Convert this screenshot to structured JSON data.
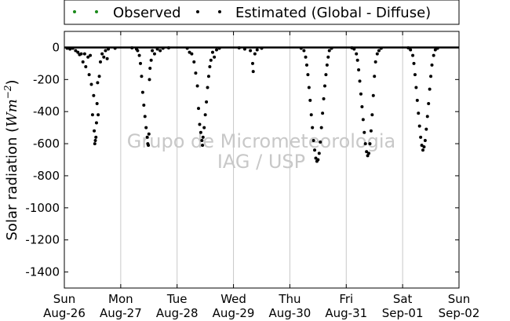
{
  "chart_data": {
    "type": "scatter",
    "title": "",
    "ylabel": "Solar radiation (Wm⁻²)",
    "ylabel_parts": {
      "main": "Solar radiation (",
      "unit": "Wm",
      "exp": "−2",
      "close": ")"
    },
    "xlabel": "",
    "ylim": [
      -1500,
      100
    ],
    "y_ticks": [
      0,
      -200,
      -400,
      -600,
      -800,
      -1000,
      -1200,
      -1400
    ],
    "xlim": [
      0,
      7
    ],
    "x_ticks": [
      {
        "day": 0,
        "weekday": "Sun",
        "date": "Aug-26"
      },
      {
        "day": 1,
        "weekday": "Mon",
        "date": "Aug-27"
      },
      {
        "day": 2,
        "weekday": "Tue",
        "date": "Aug-28"
      },
      {
        "day": 3,
        "weekday": "Wed",
        "date": "Aug-29"
      },
      {
        "day": 4,
        "weekday": "Thu",
        "date": "Aug-30"
      },
      {
        "day": 5,
        "weekday": "Fri",
        "date": "Aug-31"
      },
      {
        "day": 6,
        "weekday": "Sat",
        "date": "Sep-01"
      },
      {
        "day": 7,
        "weekday": "Sun",
        "date": "Sep-02"
      }
    ],
    "grid": "vertical",
    "legend_placement": "top-center",
    "series": [
      {
        "name": "Observed",
        "color": "#1a8a1a",
        "marker": "dot",
        "points": []
      },
      {
        "name": "Estimated (Global - Diffuse)",
        "color": "#000000",
        "marker": "dot",
        "points": [
          {
            "x": 0.05,
            "y": -5
          },
          {
            "x": 0.1,
            "y": -10
          },
          {
            "x": 0.15,
            "y": -5
          },
          {
            "x": 0.2,
            "y": -20
          },
          {
            "x": 0.24,
            "y": -30
          },
          {
            "x": 0.27,
            "y": -45
          },
          {
            "x": 0.3,
            "y": -40
          },
          {
            "x": 0.33,
            "y": -90
          },
          {
            "x": 0.36,
            "y": -40
          },
          {
            "x": 0.38,
            "y": -120
          },
          {
            "x": 0.42,
            "y": -60
          },
          {
            "x": 0.44,
            "y": -170
          },
          {
            "x": 0.46,
            "y": -50
          },
          {
            "x": 0.48,
            "y": -230
          },
          {
            "x": 0.5,
            "y": -420
          },
          {
            "x": 0.52,
            "y": -300
          },
          {
            "x": 0.53,
            "y": -520
          },
          {
            "x": 0.54,
            "y": -600
          },
          {
            "x": 0.55,
            "y": -580
          },
          {
            "x": 0.56,
            "y": -560
          },
          {
            "x": 0.57,
            "y": -470
          },
          {
            "x": 0.58,
            "y": -350
          },
          {
            "x": 0.59,
            "y": -220
          },
          {
            "x": 0.6,
            "y": -420
          },
          {
            "x": 0.62,
            "y": -180
          },
          {
            "x": 0.64,
            "y": -90
          },
          {
            "x": 0.67,
            "y": -40
          },
          {
            "x": 0.7,
            "y": -60
          },
          {
            "x": 0.73,
            "y": -20
          },
          {
            "x": 0.76,
            "y": -70
          },
          {
            "x": 0.78,
            "y": -10
          },
          {
            "x": 0.9,
            "y": -5
          },
          {
            "x": 1.2,
            "y": -3
          },
          {
            "x": 1.28,
            "y": -10
          },
          {
            "x": 1.3,
            "y": -20
          },
          {
            "x": 1.33,
            "y": -50
          },
          {
            "x": 1.35,
            "y": -100
          },
          {
            "x": 1.37,
            "y": -180
          },
          {
            "x": 1.39,
            "y": -280
          },
          {
            "x": 1.41,
            "y": -360
          },
          {
            "x": 1.43,
            "y": -430
          },
          {
            "x": 1.45,
            "y": -500
          },
          {
            "x": 1.47,
            "y": -560
          },
          {
            "x": 1.48,
            "y": -600
          },
          {
            "x": 1.49,
            "y": -610
          },
          {
            "x": 1.5,
            "y": -540
          },
          {
            "x": 1.51,
            "y": -200
          },
          {
            "x": 1.52,
            "y": -130
          },
          {
            "x": 1.54,
            "y": -80
          },
          {
            "x": 1.56,
            "y": -20
          },
          {
            "x": 1.6,
            "y": -40
          },
          {
            "x": 1.65,
            "y": -10
          },
          {
            "x": 1.7,
            "y": -20
          },
          {
            "x": 1.75,
            "y": -5
          },
          {
            "x": 1.85,
            "y": -3
          },
          {
            "x": 2.18,
            "y": -5
          },
          {
            "x": 2.22,
            "y": -30
          },
          {
            "x": 2.26,
            "y": -40
          },
          {
            "x": 2.3,
            "y": -90
          },
          {
            "x": 2.33,
            "y": -160
          },
          {
            "x": 2.36,
            "y": -240
          },
          {
            "x": 2.38,
            "y": -380
          },
          {
            "x": 2.4,
            "y": -480
          },
          {
            "x": 2.42,
            "y": -530
          },
          {
            "x": 2.44,
            "y": -580
          },
          {
            "x": 2.45,
            "y": -610
          },
          {
            "x": 2.46,
            "y": -560
          },
          {
            "x": 2.48,
            "y": -500
          },
          {
            "x": 2.5,
            "y": -420
          },
          {
            "x": 2.52,
            "y": -340
          },
          {
            "x": 2.54,
            "y": -250
          },
          {
            "x": 2.56,
            "y": -180
          },
          {
            "x": 2.58,
            "y": -120
          },
          {
            "x": 2.6,
            "y": -80
          },
          {
            "x": 2.63,
            "y": -30
          },
          {
            "x": 2.66,
            "y": -60
          },
          {
            "x": 2.7,
            "y": -15
          },
          {
            "x": 2.75,
            "y": -5
          },
          {
            "x": 3.1,
            "y": -3
          },
          {
            "x": 3.2,
            "y": -10
          },
          {
            "x": 3.3,
            "y": -20
          },
          {
            "x": 3.34,
            "y": -100
          },
          {
            "x": 3.35,
            "y": -150
          },
          {
            "x": 3.38,
            "y": -40
          },
          {
            "x": 3.42,
            "y": -15
          },
          {
            "x": 3.5,
            "y": -5
          },
          {
            "x": 4.2,
            "y": -5
          },
          {
            "x": 4.25,
            "y": -20
          },
          {
            "x": 4.28,
            "y": -60
          },
          {
            "x": 4.3,
            "y": -110
          },
          {
            "x": 4.32,
            "y": -170
          },
          {
            "x": 4.34,
            "y": -250
          },
          {
            "x": 4.36,
            "y": -330
          },
          {
            "x": 4.38,
            "y": -420
          },
          {
            "x": 4.4,
            "y": -500
          },
          {
            "x": 4.42,
            "y": -580
          },
          {
            "x": 4.44,
            "y": -640
          },
          {
            "x": 4.46,
            "y": -690
          },
          {
            "x": 4.48,
            "y": -710
          },
          {
            "x": 4.5,
            "y": -700
          },
          {
            "x": 4.52,
            "y": -660
          },
          {
            "x": 4.54,
            "y": -590
          },
          {
            "x": 4.56,
            "y": -500
          },
          {
            "x": 4.58,
            "y": -410
          },
          {
            "x": 4.6,
            "y": -320
          },
          {
            "x": 4.62,
            "y": -240
          },
          {
            "x": 4.64,
            "y": -170
          },
          {
            "x": 4.66,
            "y": -110
          },
          {
            "x": 4.68,
            "y": -60
          },
          {
            "x": 4.7,
            "y": -20
          },
          {
            "x": 4.74,
            "y": -5
          },
          {
            "x": 5.1,
            "y": -3
          },
          {
            "x": 5.14,
            "y": -10
          },
          {
            "x": 5.18,
            "y": -40
          },
          {
            "x": 5.2,
            "y": -80
          },
          {
            "x": 5.22,
            "y": -140
          },
          {
            "x": 5.24,
            "y": -210
          },
          {
            "x": 5.26,
            "y": -290
          },
          {
            "x": 5.28,
            "y": -370
          },
          {
            "x": 5.3,
            "y": -450
          },
          {
            "x": 5.32,
            "y": -530
          },
          {
            "x": 5.34,
            "y": -600
          },
          {
            "x": 5.36,
            "y": -650
          },
          {
            "x": 5.38,
            "y": -675
          },
          {
            "x": 5.4,
            "y": -660
          },
          {
            "x": 5.42,
            "y": -600
          },
          {
            "x": 5.44,
            "y": -520
          },
          {
            "x": 5.46,
            "y": -420
          },
          {
            "x": 5.48,
            "y": -300
          },
          {
            "x": 5.5,
            "y": -180
          },
          {
            "x": 5.52,
            "y": -90
          },
          {
            "x": 5.55,
            "y": -40
          },
          {
            "x": 5.58,
            "y": -20
          },
          {
            "x": 5.62,
            "y": -5
          },
          {
            "x": 6.1,
            "y": -3
          },
          {
            "x": 6.14,
            "y": -15
          },
          {
            "x": 6.18,
            "y": -50
          },
          {
            "x": 6.2,
            "y": -100
          },
          {
            "x": 6.22,
            "y": -170
          },
          {
            "x": 6.24,
            "y": -250
          },
          {
            "x": 6.26,
            "y": -330
          },
          {
            "x": 6.28,
            "y": -410
          },
          {
            "x": 6.3,
            "y": -490
          },
          {
            "x": 6.32,
            "y": -560
          },
          {
            "x": 6.34,
            "y": -610
          },
          {
            "x": 6.36,
            "y": -640
          },
          {
            "x": 6.38,
            "y": -620
          },
          {
            "x": 6.4,
            "y": -580
          },
          {
            "x": 6.42,
            "y": -510
          },
          {
            "x": 6.44,
            "y": -430
          },
          {
            "x": 6.46,
            "y": -350
          },
          {
            "x": 6.48,
            "y": -260
          },
          {
            "x": 6.5,
            "y": -180
          },
          {
            "x": 6.52,
            "y": -110
          },
          {
            "x": 6.55,
            "y": -50
          },
          {
            "x": 6.58,
            "y": -15
          },
          {
            "x": 6.62,
            "y": -5
          }
        ]
      }
    ],
    "watermark": [
      "Grupo de Micrometeorologia",
      "IAG / USP"
    ]
  }
}
